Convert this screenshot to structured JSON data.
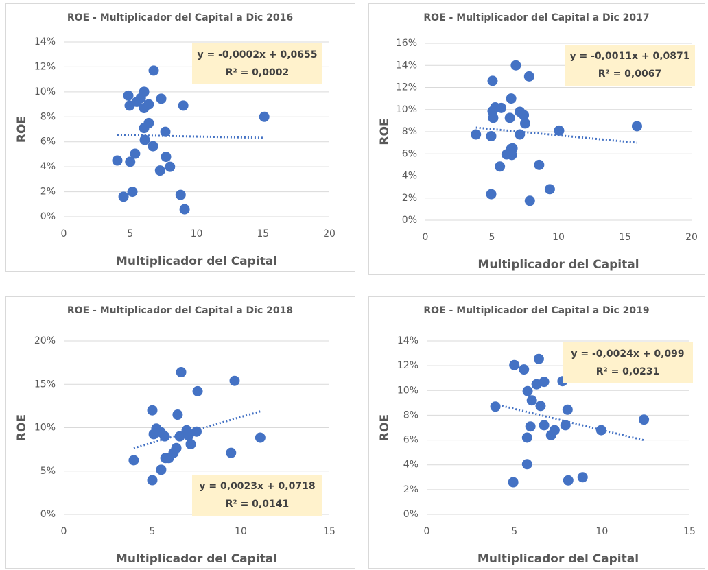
{
  "chart_data": [
    {
      "type": "scatter",
      "title": "ROE - Multiplicador del Capital a Dic 2016",
      "xlabel": "Multiplicador del Capital",
      "ylabel": "ROE",
      "color": "#4472c4",
      "grid": true,
      "trendline": true,
      "annotation": [
        "y = -0,0002x + 0,0655",
        "R² = 0,0002"
      ],
      "annotation_position": "top-right",
      "xlim": [
        0,
        20
      ],
      "xticks": [
        0,
        5,
        10,
        15,
        20
      ],
      "ylim": [
        0,
        14
      ],
      "yticks": [
        {
          "value": 0,
          "label": "0%"
        },
        {
          "value": 2,
          "label": "2%"
        },
        {
          "value": 4,
          "label": "4%"
        },
        {
          "value": 6,
          "label": "6%"
        },
        {
          "value": 8,
          "label": "8%"
        },
        {
          "value": 10,
          "label": "10%"
        },
        {
          "value": 12,
          "label": "12%"
        },
        {
          "value": 14,
          "label": "14%"
        }
      ],
      "x": [
        6.77,
        4.86,
        4.96,
        5.5,
        5.8,
        6.05,
        6.05,
        6.4,
        7.34,
        9.0,
        15.1,
        6.05,
        6.4,
        7.65,
        6.1,
        6.72,
        5.37,
        5.0,
        4.03,
        7.7,
        8.0,
        7.25,
        4.5,
        5.17,
        8.8,
        9.1
      ],
      "values": [
        11.7,
        9.7,
        8.9,
        9.2,
        9.5,
        10.0,
        8.7,
        9.0,
        9.45,
        8.9,
        8.0,
        7.1,
        7.5,
        6.8,
        6.15,
        5.65,
        5.05,
        4.4,
        4.5,
        4.8,
        4.0,
        3.7,
        1.6,
        2.0,
        1.75,
        0.6
      ]
    },
    {
      "type": "scatter",
      "title": "ROE - Multiplicador del Capital a Dic 2017",
      "xlabel": "Multiplicador del Capital",
      "ylabel": "ROE",
      "color": "#4472c4",
      "grid": true,
      "trendline": true,
      "annotation": [
        "y = -0,0011x + 0,0871",
        "R² = 0,0067"
      ],
      "annotation_position": "top-right",
      "xlim": [
        0,
        20
      ],
      "xticks": [
        0,
        5,
        10,
        15,
        20
      ],
      "ylim": [
        0,
        16
      ],
      "yticks": [
        {
          "value": 0,
          "label": "0%"
        },
        {
          "value": 2,
          "label": "2%"
        },
        {
          "value": 4,
          "label": "4%"
        },
        {
          "value": 6,
          "label": "6%"
        },
        {
          "value": 8,
          "label": "8%"
        },
        {
          "value": 10,
          "label": "10%"
        },
        {
          "value": 12,
          "label": "12%"
        },
        {
          "value": 14,
          "label": "14%"
        },
        {
          "value": 16,
          "label": "16%"
        }
      ],
      "x": [
        6.8,
        7.8,
        5.05,
        6.45,
        5.25,
        5.7,
        5.05,
        5.1,
        6.35,
        7.1,
        7.4,
        7.5,
        10.05,
        15.9,
        3.8,
        4.95,
        7.1,
        6.45,
        6.55,
        6.1,
        6.5,
        5.6,
        8.55,
        9.35,
        4.95,
        7.85
      ],
      "values": [
        14.0,
        13.0,
        12.6,
        11.0,
        10.2,
        10.15,
        9.85,
        9.25,
        9.25,
        9.8,
        9.5,
        8.75,
        8.1,
        8.5,
        7.75,
        7.6,
        7.75,
        6.45,
        6.5,
        5.95,
        5.9,
        4.85,
        5.0,
        2.8,
        2.35,
        1.75
      ]
    },
    {
      "type": "scatter",
      "title": "ROE - Multiplicador del Capital a Dic 2018",
      "xlabel": "Multiplicador del Capital",
      "ylabel": "ROE",
      "color": "#4472c4",
      "grid": true,
      "trendline": true,
      "annotation": [
        "y = 0,0023x + 0,0718",
        "R² = 0,0141"
      ],
      "annotation_position": "bottom-right",
      "xlim": [
        0,
        15
      ],
      "xticks": [
        0,
        5,
        10,
        15
      ],
      "ylim": [
        0,
        20
      ],
      "yticks": [
        {
          "value": 0,
          "label": "0%"
        },
        {
          "value": 5,
          "label": "5%"
        },
        {
          "value": 10,
          "label": "10%"
        },
        {
          "value": 15,
          "label": "15%"
        },
        {
          "value": 20,
          "label": "20%"
        }
      ],
      "x": [
        6.63,
        9.65,
        7.56,
        5.0,
        6.43,
        5.23,
        5.47,
        6.94,
        5.08,
        5.7,
        6.55,
        7.05,
        7.5,
        7.17,
        11.1,
        9.45,
        6.36,
        6.2,
        5.74,
        5.93,
        3.95,
        5.5,
        5.0
      ],
      "values": [
        16.4,
        15.4,
        14.2,
        12.0,
        11.5,
        9.9,
        9.5,
        9.7,
        9.25,
        9.0,
        9.0,
        9.1,
        9.55,
        8.1,
        8.85,
        7.1,
        7.65,
        7.1,
        6.5,
        6.5,
        6.25,
        5.15,
        3.95
      ]
    },
    {
      "type": "scatter",
      "title": "ROE - Multiplicador del Capital a Dic 2019",
      "xlabel": "Multiplicador del Capital",
      "ylabel": "ROE",
      "color": "#4472c4",
      "grid": true,
      "trendline": true,
      "annotation": [
        "y = -0,0024x + 0,099",
        "R² = 0,0231"
      ],
      "annotation_position": "top-right",
      "xlim": [
        0,
        15
      ],
      "xticks": [
        0,
        5,
        10,
        15
      ],
      "ylim": [
        0,
        14
      ],
      "yticks": [
        {
          "value": 0,
          "label": "0%"
        },
        {
          "value": 2,
          "label": "2%"
        },
        {
          "value": 4,
          "label": "4%"
        },
        {
          "value": 6,
          "label": "6%"
        },
        {
          "value": 8,
          "label": "8%"
        },
        {
          "value": 10,
          "label": "10%"
        },
        {
          "value": 12,
          "label": "12%"
        },
        {
          "value": 14,
          "label": "14%"
        }
      ],
      "x": [
        6.4,
        5.0,
        5.55,
        7.75,
        6.7,
        6.27,
        5.76,
        6.0,
        3.92,
        6.5,
        8.04,
        12.4,
        6.7,
        7.92,
        5.92,
        7.3,
        9.96,
        7.1,
        5.73,
        5.73,
        4.94,
        8.08,
        8.9
      ],
      "values": [
        12.55,
        12.05,
        11.7,
        10.75,
        10.7,
        10.5,
        9.95,
        9.2,
        8.7,
        8.75,
        8.45,
        7.65,
        7.2,
        7.2,
        7.1,
        6.8,
        6.8,
        6.4,
        6.2,
        4.05,
        2.6,
        2.75,
        3.0
      ]
    }
  ]
}
